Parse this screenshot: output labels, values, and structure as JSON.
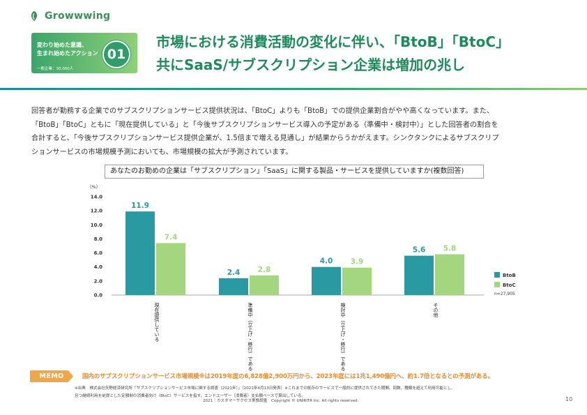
{
  "header": {
    "logo_text": "Growwwing",
    "badge_line1": "変わり始めた意識、",
    "badge_line2": "生まれ始めたアクション",
    "badge_sub": "一般企業：30,000人",
    "badge_number": "01",
    "title_line1": "市場における消費活動の変化に伴い、「BtoB」「BtoC」",
    "title_line2": "共にSaaS/サブスクリプション企業は増加の兆し"
  },
  "body": {
    "line1": "回答者が勤務する企業でのサブスクリプションサービス提供状況は、「BtoC」よりも「BtoB」での提供企業割合がやや高くなっています。また、",
    "line2": "「BtoB」「BtoC」ともに「現在提供している」と「今後サブスクリプションサービス導入の予定がある（準備中・検討中）」とした回答者の割合を",
    "line3": "合計すると、「今後サブスクリプションサービス提供企業が、1.5倍まで増える見通し」が結果からうかがえます。シンクタンクによるサブスクリプ",
    "line4": "ションサービスの市場規模予測においても、市場規模の拡大が予測されています。"
  },
  "chart_data": {
    "type": "bar",
    "title": "あなたのお勤めの企業は「サブスクリプション」「SaaS」に関する製品・サービスを提供していますか(複数回答)",
    "ylabel": "（%）",
    "ylim": [
      0,
      14
    ],
    "yticks": [
      "0.0",
      "2.0",
      "4.0",
      "6.0",
      "8.0",
      "10.0",
      "12.0",
      "14.0"
    ],
    "categories": [
      "現在提供している",
      "準備中（立上げ・移行）である",
      "検討中（立上げ・移行）である",
      "その他"
    ],
    "series": [
      {
        "name": "BtoB",
        "color": "#2a9aa2",
        "values": [
          11.9,
          2.4,
          4.0,
          5.6
        ],
        "labels": [
          "11.9",
          "2.4",
          "4.0",
          "5.6"
        ]
      },
      {
        "name": "BtoC",
        "color": "#a3d67f",
        "values": [
          7.4,
          2.8,
          3.9,
          5.8
        ],
        "labels": [
          "7.4",
          "2.8",
          "3.9",
          "5.8"
        ]
      }
    ],
    "legend": "right",
    "grid": false,
    "note": "n=27,905"
  },
  "memo": {
    "tag": "MEMO",
    "text": "国内のサブスクリプションサービス市場規模※は2019年度の6,828億2,900万円から、2023年度には1兆1,490億円へ、約1.7倍となるとの予測がある。"
  },
  "source": {
    "line1": "※出典　株式会社矢野経済研究所「サブスクリプションサービス市場に関する調査（2021年）」（2021年4月13日発表）※これまでの既存のサービスで一般的に提供されてきた期間、回数、種類を超えて利用可能とし、",
    "line2": "且つ継続利用を前提とした定額制の消費者向け（BtoC）サービスを指す。エンドユーザー（消費者）支払額ベースで算出している。"
  },
  "footer": {
    "text": "2021｜カスタマーサクセス実態調査　Copyright © UNIRITA Inc. All rights reserved.",
    "page": "10"
  }
}
